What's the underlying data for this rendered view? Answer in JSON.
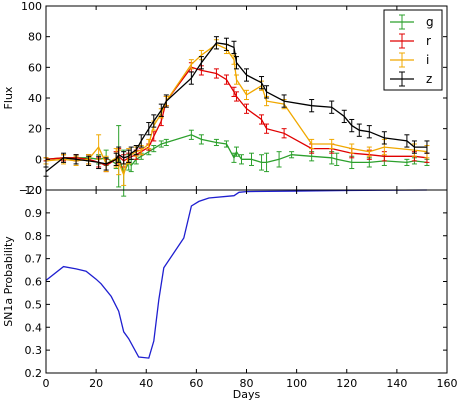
{
  "chart_data": [
    {
      "type": "line",
      "xlabel": "",
      "ylabel": "Flux",
      "xlim": [
        0,
        160
      ],
      "ylim": [
        -20,
        100
      ],
      "yticks": [
        -20,
        0,
        20,
        40,
        60,
        80,
        100
      ],
      "xticks": [
        0,
        20,
        40,
        60,
        80,
        100,
        120,
        140,
        160
      ],
      "grid": false,
      "legend_position": "top-right",
      "series": [
        {
          "name": "g",
          "color": "#2ca02c",
          "x": [
            0,
            7,
            12,
            17,
            21,
            24,
            28,
            29,
            31,
            33,
            34,
            36,
            38,
            41,
            43,
            46,
            48,
            58,
            62,
            68,
            72,
            75,
            76,
            78,
            82,
            86,
            88,
            93,
            98,
            106,
            114,
            116,
            122,
            129,
            135,
            144,
            147,
            152
          ],
          "y": [
            0,
            1,
            1,
            1,
            0,
            1,
            -3,
            2,
            -9,
            -2,
            -4,
            0,
            2,
            5,
            7,
            10,
            11,
            16,
            13,
            11,
            10,
            1,
            5,
            0,
            0,
            -2,
            -2,
            0,
            3,
            2,
            1,
            0,
            -2,
            -2,
            -1,
            -2,
            -1,
            -2
          ],
          "err": [
            1,
            2,
            2,
            2,
            3,
            5,
            3,
            20,
            15,
            5,
            4,
            3,
            2,
            2,
            2,
            2,
            2,
            3,
            3,
            2,
            2,
            3,
            3,
            3,
            4,
            5,
            6,
            5,
            2,
            3,
            4,
            4,
            4,
            3,
            3,
            2,
            2,
            2
          ]
        },
        {
          "name": "r",
          "color": "#e00000",
          "x": [
            0,
            7,
            12,
            17,
            21,
            24,
            28,
            29,
            31,
            33,
            36,
            38,
            41,
            43,
            46,
            48,
            58,
            62,
            68,
            72,
            75,
            76,
            80,
            86,
            88,
            95,
            106,
            114,
            122,
            129,
            135,
            147,
            152
          ],
          "y": [
            0,
            1,
            1,
            0,
            -2,
            -4,
            0,
            2,
            -1,
            1,
            3,
            5,
            8,
            15,
            25,
            38,
            60,
            58,
            56,
            52,
            44,
            41,
            33,
            26,
            20,
            17,
            7,
            7,
            4,
            3,
            2,
            2,
            1
          ],
          "err": [
            1,
            2,
            2,
            3,
            3,
            4,
            5,
            5,
            4,
            3,
            3,
            2,
            2,
            3,
            3,
            3,
            3,
            3,
            3,
            3,
            3,
            3,
            3,
            3,
            3,
            3,
            3,
            3,
            3,
            3,
            3,
            3,
            3
          ]
        },
        {
          "name": "i",
          "color": "#f0a800",
          "x": [
            0,
            7,
            12,
            17,
            21,
            24,
            28,
            29,
            31,
            33,
            36,
            38,
            41,
            43,
            46,
            48,
            58,
            62,
            68,
            72,
            75,
            76,
            80,
            86,
            88,
            95,
            106,
            114,
            122,
            129,
            135,
            147,
            152
          ],
          "y": [
            -1,
            0,
            -1,
            0,
            8,
            -3,
            1,
            -2,
            -10,
            2,
            5,
            6,
            10,
            22,
            30,
            38,
            62,
            68,
            75,
            72,
            65,
            52,
            42,
            48,
            38,
            36,
            10,
            10,
            7,
            5,
            8,
            6,
            5
          ],
          "err": [
            2,
            3,
            3,
            3,
            8,
            5,
            6,
            8,
            7,
            5,
            3,
            3,
            3,
            3,
            3,
            3,
            3,
            3,
            3,
            3,
            3,
            3,
            3,
            3,
            3,
            3,
            3,
            3,
            3,
            3,
            5,
            4,
            4
          ]
        },
        {
          "name": "z",
          "color": "#000000",
          "x": [
            0,
            7,
            12,
            17,
            21,
            24,
            28,
            29,
            31,
            33,
            34,
            36,
            38,
            41,
            43,
            46,
            48,
            58,
            62,
            68,
            72,
            75,
            76,
            80,
            86,
            88,
            95,
            106,
            114,
            119,
            122,
            125,
            129,
            135,
            144,
            147,
            152
          ],
          "y": [
            -8,
            1,
            0,
            -1,
            -2,
            -3,
            0,
            3,
            1,
            2,
            4,
            6,
            12,
            20,
            25,
            32,
            38,
            53,
            63,
            76,
            75,
            73,
            63,
            55,
            50,
            44,
            38,
            35,
            34,
            28,
            22,
            19,
            18,
            14,
            12,
            8,
            8
          ],
          "err": [
            3,
            3,
            3,
            3,
            4,
            4,
            4,
            5,
            4,
            4,
            4,
            3,
            4,
            4,
            4,
            4,
            4,
            4,
            4,
            4,
            4,
            4,
            4,
            4,
            4,
            4,
            4,
            4,
            4,
            4,
            4,
            4,
            4,
            4,
            4,
            4,
            4
          ]
        }
      ]
    },
    {
      "type": "line",
      "xlabel": "Days",
      "ylabel": "SN1a Probability",
      "xlim": [
        0,
        160
      ],
      "ylim": [
        0.2,
        1.0
      ],
      "yticks": [
        0.2,
        0.3,
        0.4,
        0.5,
        0.6,
        0.7,
        0.8,
        0.9,
        1.0
      ],
      "xticks": [
        0,
        20,
        40,
        60,
        80,
        100,
        120,
        140,
        160
      ],
      "grid": false,
      "series": [
        {
          "color": "#1f1fd0",
          "x": [
            0,
            7,
            12,
            16,
            20,
            22,
            26,
            29,
            31,
            33,
            37,
            41,
            43,
            45,
            47,
            55,
            58,
            61,
            65,
            75,
            77,
            80,
            100,
            120,
            152
          ],
          "y": [
            0.605,
            0.665,
            0.655,
            0.645,
            0.61,
            0.59,
            0.535,
            0.47,
            0.38,
            0.35,
            0.27,
            0.265,
            0.34,
            0.52,
            0.66,
            0.79,
            0.93,
            0.95,
            0.965,
            0.975,
            0.99,
            0.993,
            0.995,
            0.998,
            1.0
          ]
        }
      ]
    }
  ]
}
